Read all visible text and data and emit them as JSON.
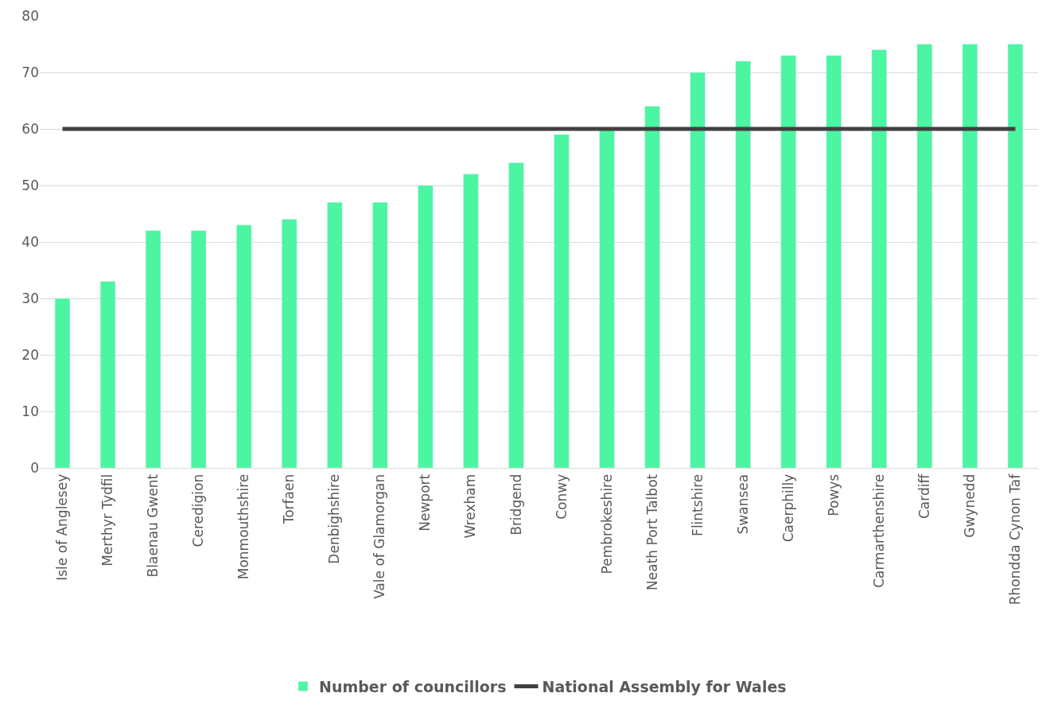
{
  "chart_data": {
    "type": "bar",
    "categories": [
      "Isle of Anglesey",
      "Merthyr Tydfil",
      "Blaenau Gwent",
      "Ceredigion",
      "Monmouthshire",
      "Torfaen",
      "Denbighshire",
      "Vale of Glamorgan",
      "Newport",
      "Wrexham",
      "Bridgend",
      "Conwy",
      "Pembrokeshire",
      "Neath Port Talbot",
      "Flintshire",
      "Swansea",
      "Caerphilly",
      "Powys",
      "Carmarthenshire",
      "Cardiff",
      "Gwynedd",
      "Rhondda Cynon Taf"
    ],
    "series": [
      {
        "name": "Number of councillors",
        "color": "#4bf5a1",
        "values": [
          30,
          33,
          42,
          42,
          43,
          44,
          47,
          47,
          50,
          52,
          54,
          59,
          60,
          64,
          70,
          72,
          73,
          73,
          74,
          75,
          75,
          75
        ]
      },
      {
        "name": "National Assembly for Wales",
        "type": "line",
        "color": "#404040",
        "values": [
          60,
          60,
          60,
          60,
          60,
          60,
          60,
          60,
          60,
          60,
          60,
          60,
          60,
          60,
          60,
          60,
          60,
          60,
          60,
          60,
          60,
          60
        ]
      }
    ],
    "ylim": [
      0,
      80
    ],
    "yticks": [
      0,
      10,
      20,
      30,
      40,
      50,
      60,
      70,
      80
    ],
    "grid": "y",
    "legend": "bottom",
    "marker": "none",
    "line_style": "solid"
  }
}
